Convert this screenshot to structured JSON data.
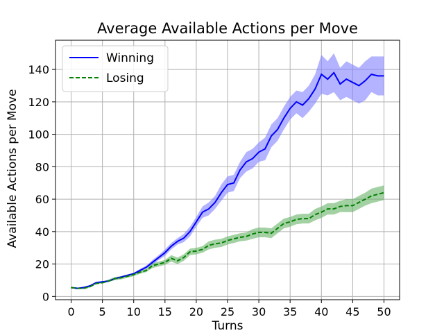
{
  "chart_data": {
    "type": "line",
    "title": "Average Available Actions per Move",
    "xlabel": "Turns",
    "ylabel": "Available Actions per Move",
    "xlim": [
      -2.5,
      52.5
    ],
    "ylim": [
      -2,
      158
    ],
    "xticks": [
      0,
      5,
      10,
      15,
      20,
      25,
      30,
      35,
      40,
      45,
      50
    ],
    "yticks": [
      0,
      20,
      40,
      60,
      80,
      100,
      120,
      140
    ],
    "grid": true,
    "legend_position": "top-left",
    "x": [
      0,
      1,
      2,
      3,
      4,
      5,
      6,
      7,
      8,
      9,
      10,
      11,
      12,
      13,
      14,
      15,
      16,
      17,
      18,
      19,
      20,
      21,
      22,
      23,
      24,
      25,
      26,
      27,
      28,
      29,
      30,
      31,
      32,
      33,
      34,
      35,
      36,
      37,
      38,
      39,
      40,
      41,
      42,
      43,
      44,
      45,
      46,
      47,
      48,
      49,
      50
    ],
    "series": [
      {
        "name": "Winning",
        "color": "#0000ff",
        "band_color": "#8080ff",
        "line_style": "solid",
        "values": [
          5.5,
          5,
          5.5,
          6.5,
          8.5,
          9,
          9.5,
          11,
          12,
          13,
          14,
          16,
          18,
          21,
          24,
          27,
          31,
          34,
          36,
          40,
          46,
          52,
          54,
          58,
          64,
          69,
          70,
          78,
          83,
          85,
          89,
          91,
          99,
          103,
          110,
          116,
          120,
          118,
          122,
          128,
          137,
          134,
          138,
          131,
          134,
          132,
          130,
          133,
          137,
          136,
          136
        ],
        "lower": [
          5,
          4.5,
          5,
          6,
          8,
          8.5,
          9,
          10.5,
          11.5,
          12.5,
          13.5,
          15,
          17,
          19.5,
          22.5,
          25,
          29,
          32,
          33.5,
          37,
          43,
          48.5,
          50,
          54,
          59,
          64,
          65,
          73,
          77,
          79,
          83,
          84,
          92,
          96,
          103,
          109,
          113,
          110,
          114,
          119,
          125,
          124,
          126,
          121,
          123,
          121,
          119,
          121,
          126,
          124,
          124
        ],
        "upper": [
          6,
          5.5,
          6,
          7,
          9,
          9.5,
          10,
          11.5,
          12.5,
          13.5,
          14.5,
          17,
          19,
          22.5,
          25.5,
          29,
          33,
          36,
          38.5,
          43,
          49,
          55.5,
          58,
          62,
          69,
          74,
          75,
          83,
          89,
          91,
          95,
          98,
          106,
          110,
          117,
          123,
          127,
          126,
          130,
          137,
          149,
          145,
          150,
          141,
          145,
          143,
          141,
          145,
          148,
          148,
          148
        ]
      },
      {
        "name": "Losing",
        "color": "#008000",
        "band_color": "#66b366",
        "line_style": "dashed",
        "values": [
          5.5,
          5,
          5,
          6,
          8,
          8.5,
          9.5,
          11,
          11.5,
          12.5,
          13.5,
          15,
          16,
          19,
          20,
          21,
          23.5,
          22,
          24,
          27.5,
          28,
          29,
          31.5,
          32.5,
          33,
          34.5,
          35.5,
          36.5,
          37,
          38.5,
          39.5,
          39.5,
          39,
          42,
          45,
          46,
          47.5,
          48,
          48,
          50.5,
          52,
          54,
          54,
          55.5,
          56,
          56,
          58,
          60,
          62,
          63,
          64
        ],
        "lower": [
          5,
          4.5,
          4.5,
          5.5,
          7.5,
          8,
          9,
          10,
          10.5,
          11.5,
          12.5,
          14,
          15,
          17.5,
          18.5,
          19.5,
          21.5,
          20,
          22,
          25.5,
          26,
          27,
          29,
          30,
          30.5,
          32,
          33,
          34,
          34.5,
          35.5,
          36.5,
          36.5,
          36,
          39,
          42,
          43,
          44.5,
          45,
          45,
          47,
          48.5,
          50.5,
          50.5,
          52,
          52,
          52,
          54,
          56,
          57.5,
          58.5,
          59.5
        ],
        "upper": [
          6,
          5.5,
          5.5,
          6.5,
          8.5,
          9,
          10.5,
          12,
          12.5,
          13.5,
          14.5,
          16,
          17,
          20.5,
          21.5,
          22.5,
          25.5,
          24,
          26,
          29.5,
          30,
          31,
          34,
          35,
          35.5,
          37,
          38,
          39,
          39.5,
          41.5,
          42.5,
          42.5,
          42,
          45,
          48,
          49,
          50.5,
          51,
          51,
          54,
          55.5,
          57.5,
          57.5,
          59,
          60,
          60,
          62,
          64,
          66.5,
          67.5,
          68.5
        ]
      }
    ]
  }
}
